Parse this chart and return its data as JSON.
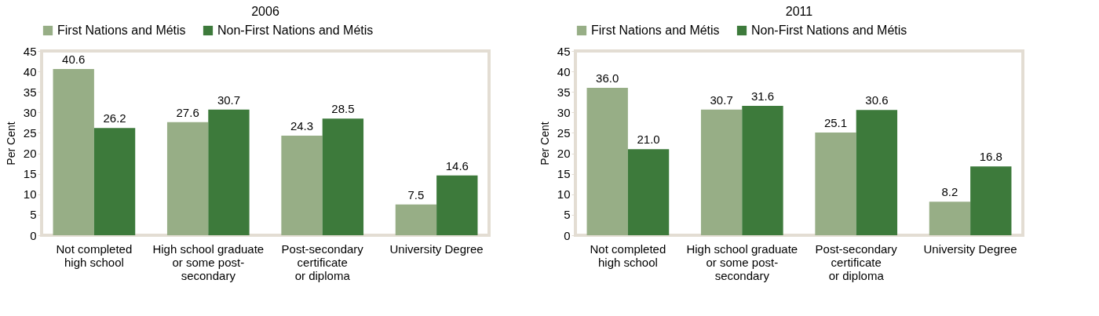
{
  "chart_data": [
    {
      "type": "bar",
      "title": "2006",
      "ylabel": "Per Cent",
      "categories": [
        "Not completed\nhigh school",
        "High school graduate\nor some post-\nsecondary",
        "Post-secondary\ncertificate\nor diploma",
        "University Degree"
      ],
      "series": [
        {
          "name": "First Nations and Métis",
          "color": "#97ae86",
          "values": [
            40.6,
            27.6,
            24.3,
            7.5
          ]
        },
        {
          "name": "Non-First Nations and Métis",
          "color": "#3d7a3b",
          "values": [
            26.2,
            30.7,
            28.5,
            14.6
          ]
        }
      ],
      "value_labels": [
        [
          "40.6",
          "27.6",
          "24.3",
          "7.5"
        ],
        [
          "26.2",
          "30.7",
          "28.5",
          "14.6"
        ]
      ],
      "ylim": [
        0,
        45
      ],
      "yticks": [
        0,
        5,
        10,
        15,
        20,
        25,
        30,
        35,
        40,
        45
      ],
      "grid": false,
      "legend": "top"
    },
    {
      "type": "bar",
      "title": "2011",
      "ylabel": "Per Cent",
      "categories": [
        "Not completed\nhigh school",
        "High school graduate\nor some post-\nsecondary",
        "Post-secondary\ncertificate\nor diploma",
        "University Degree"
      ],
      "series": [
        {
          "name": "First Nations and Métis",
          "color": "#97ae86",
          "values": [
            36.0,
            30.7,
            25.1,
            8.2
          ]
        },
        {
          "name": "Non-First Nations and Métis",
          "color": "#3d7a3b",
          "values": [
            21.0,
            31.6,
            30.6,
            16.8
          ]
        }
      ],
      "value_labels": [
        [
          "36.0",
          "30.7",
          "25.1",
          "8.2"
        ],
        [
          "21.0",
          "31.6",
          "30.6",
          "16.8"
        ]
      ],
      "ylim": [
        0,
        45
      ],
      "yticks": [
        0,
        5,
        10,
        15,
        20,
        25,
        30,
        35,
        40,
        45
      ],
      "grid": false,
      "legend": "top"
    }
  ]
}
